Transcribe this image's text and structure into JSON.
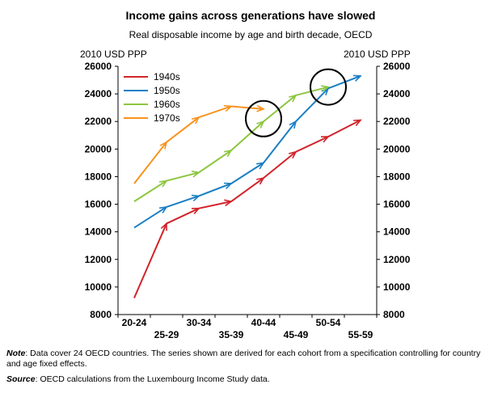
{
  "chart_data": {
    "type": "line",
    "title": "Income gains across generations have slowed",
    "subtitle": "Real disposable income by age and birth decade, OECD",
    "ylabel_left": "2010 USD PPP",
    "ylabel_right": "2010 USD PPP",
    "ylim": [
      8000,
      26000
    ],
    "yticks": [
      8000,
      10000,
      12000,
      14000,
      16000,
      18000,
      20000,
      22000,
      24000,
      26000
    ],
    "categories": [
      "20-24",
      "25-29",
      "30-34",
      "35-39",
      "40-44",
      "45-49",
      "50-54",
      "55-59"
    ],
    "category_rows": [
      0,
      1,
      0,
      1,
      0,
      1,
      0,
      1
    ],
    "series": [
      {
        "name": "1940s",
        "color": "#d2232a",
        "values": [
          9200,
          14600,
          15700,
          16200,
          17900,
          19800,
          20900,
          22100
        ]
      },
      {
        "name": "1950s",
        "color": "#1b7fc4",
        "values": [
          14300,
          15800,
          16600,
          17500,
          19000,
          22000,
          24400,
          25300
        ]
      },
      {
        "name": "1960s",
        "color": "#8dc63f",
        "values": [
          16200,
          17700,
          18300,
          19900,
          22000,
          23900,
          24500,
          null
        ]
      },
      {
        "name": "1970s",
        "color": "#f7931e",
        "values": [
          17500,
          20500,
          22300,
          23100,
          22900,
          null,
          null,
          null
        ]
      }
    ],
    "annotations": [
      {
        "shape": "circle",
        "category": "40-44",
        "y": 22200
      },
      {
        "shape": "circle",
        "category": "50-54",
        "y": 24500
      }
    ],
    "legend_position": "top-left",
    "grid": false
  },
  "notes": {
    "note_label": "Note",
    "note_text": ": Data cover 24 OECD countries. The series shown are derived for each cohort from a specification controlling for country and age fixed effects.",
    "source_label": "Source",
    "source_text": ": OECD calculations from the Luxembourg Income Study data."
  }
}
